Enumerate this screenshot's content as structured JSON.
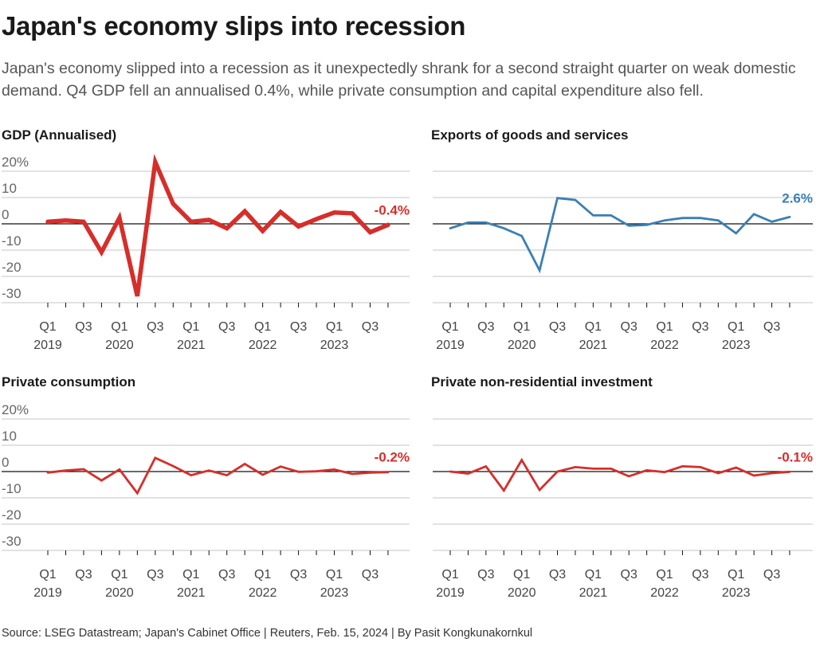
{
  "header": {
    "title": "Japan's economy slips into recession",
    "subtitle": "Japan's economy slipped into a recession as it unexpectedly shrank for a second straight quarter on weak domestic demand. Q4 GDP fell an annualised 0.4%, while private consumption and capital expenditure also fell."
  },
  "footer": {
    "source": "Source: LSEG Datastream; Japan's Cabinet Office | Reuters, Feb. 15, 2024 | By Pasit Kongkunakornkul"
  },
  "chart_data": [
    {
      "type": "line",
      "title": "GDP (Annualised)",
      "color": "#d62e2a",
      "x": [
        "Q1 2019",
        "Q2 2019",
        "Q3 2019",
        "Q4 2019",
        "Q1 2020",
        "Q2 2020",
        "Q3 2020",
        "Q4 2020",
        "Q1 2021",
        "Q2 2021",
        "Q3 2021",
        "Q4 2021",
        "Q1 2022",
        "Q2 2022",
        "Q3 2022",
        "Q4 2022",
        "Q1 2023",
        "Q2 2023",
        "Q3 2023",
        "Q4 2023"
      ],
      "values": [
        0.8,
        1.3,
        0.8,
        -10.8,
        2.3,
        -27.5,
        23.5,
        7.6,
        0.8,
        1.5,
        -1.7,
        4.8,
        -2.7,
        4.5,
        -1.0,
        1.8,
        4.3,
        4.0,
        -3.2,
        -0.4
      ],
      "end_label": "-0.4%",
      "yticks": [
        "20%",
        "10",
        "0",
        "-10",
        "-20",
        "-30"
      ],
      "ylim": [
        -30,
        20
      ],
      "xtick_labels": [
        "Q1",
        "Q3",
        "Q1",
        "Q3",
        "Q1",
        "Q3",
        "Q1",
        "Q3",
        "Q1",
        "Q3"
      ],
      "year_labels": [
        "2019",
        "2020",
        "2021",
        "2022",
        "2023"
      ],
      "grid": true
    },
    {
      "type": "line",
      "title": "Exports of goods and services",
      "color": "#3a7fb5",
      "x": [
        "Q1 2019",
        "Q2 2019",
        "Q3 2019",
        "Q4 2019",
        "Q1 2020",
        "Q2 2020",
        "Q3 2020",
        "Q4 2020",
        "Q1 2021",
        "Q2 2021",
        "Q3 2021",
        "Q4 2021",
        "Q1 2022",
        "Q2 2022",
        "Q3 2022",
        "Q4 2022",
        "Q1 2023",
        "Q2 2023",
        "Q3 2023",
        "Q4 2023"
      ],
      "values": [
        -1.7,
        0.5,
        0.5,
        -1.7,
        -4.6,
        -17.7,
        9.8,
        9.1,
        3.2,
        3.2,
        -0.7,
        -0.4,
        1.3,
        2.2,
        2.2,
        1.3,
        -3.6,
        3.7,
        0.8,
        2.6
      ],
      "end_label": "2.6%",
      "ylim": [
        -30,
        20
      ],
      "xtick_labels": [
        "Q1",
        "Q3",
        "Q1",
        "Q3",
        "Q1",
        "Q3",
        "Q1",
        "Q3",
        "Q1",
        "Q3"
      ],
      "year_labels": [
        "2019",
        "2020",
        "2021",
        "2022",
        "2023"
      ],
      "grid": true
    },
    {
      "type": "line",
      "title": "Private consumption",
      "color": "#d62e2a",
      "x": [
        "Q1 2019",
        "Q2 2019",
        "Q3 2019",
        "Q4 2019",
        "Q1 2020",
        "Q2 2020",
        "Q3 2020",
        "Q4 2020",
        "Q1 2021",
        "Q2 2021",
        "Q3 2021",
        "Q4 2021",
        "Q1 2022",
        "Q2 2022",
        "Q3 2022",
        "Q4 2022",
        "Q1 2023",
        "Q2 2023",
        "Q3 2023",
        "Q4 2023"
      ],
      "values": [
        -0.4,
        0.4,
        0.9,
        -3.4,
        0.8,
        -8.2,
        5.2,
        2.1,
        -1.4,
        0.4,
        -1.4,
        2.9,
        -1.2,
        1.9,
        -0.1,
        0.1,
        0.8,
        -0.9,
        -0.4,
        -0.2
      ],
      "end_label": "-0.2%",
      "yticks": [
        "20%",
        "10",
        "0",
        "-10",
        "-20",
        "-30"
      ],
      "ylim": [
        -30,
        20
      ],
      "xtick_labels": [
        "Q1",
        "Q3",
        "Q1",
        "Q3",
        "Q1",
        "Q3",
        "Q1",
        "Q3",
        "Q1",
        "Q3"
      ],
      "year_labels": [
        "2019",
        "2020",
        "2021",
        "2022",
        "2023"
      ],
      "grid": true
    },
    {
      "type": "line",
      "title": "Private non-residential investment",
      "color": "#d62e2a",
      "x": [
        "Q1 2019",
        "Q2 2019",
        "Q3 2019",
        "Q4 2019",
        "Q1 2020",
        "Q2 2020",
        "Q3 2020",
        "Q4 2020",
        "Q1 2021",
        "Q2 2021",
        "Q3 2021",
        "Q4 2021",
        "Q1 2022",
        "Q2 2022",
        "Q3 2022",
        "Q4 2022",
        "Q1 2023",
        "Q2 2023",
        "Q3 2023",
        "Q4 2023"
      ],
      "values": [
        0.0,
        -0.8,
        2.0,
        -7.2,
        4.4,
        -7.0,
        0.0,
        1.7,
        1.1,
        1.1,
        -1.8,
        0.5,
        -0.2,
        2.0,
        1.7,
        -0.6,
        1.5,
        -1.5,
        -0.6,
        -0.1
      ],
      "end_label": "-0.1%",
      "ylim": [
        -30,
        20
      ],
      "xtick_labels": [
        "Q1",
        "Q3",
        "Q1",
        "Q3",
        "Q1",
        "Q3",
        "Q1",
        "Q3",
        "Q1",
        "Q3"
      ],
      "year_labels": [
        "2019",
        "2020",
        "2021",
        "2022",
        "2023"
      ],
      "grid": true
    }
  ]
}
